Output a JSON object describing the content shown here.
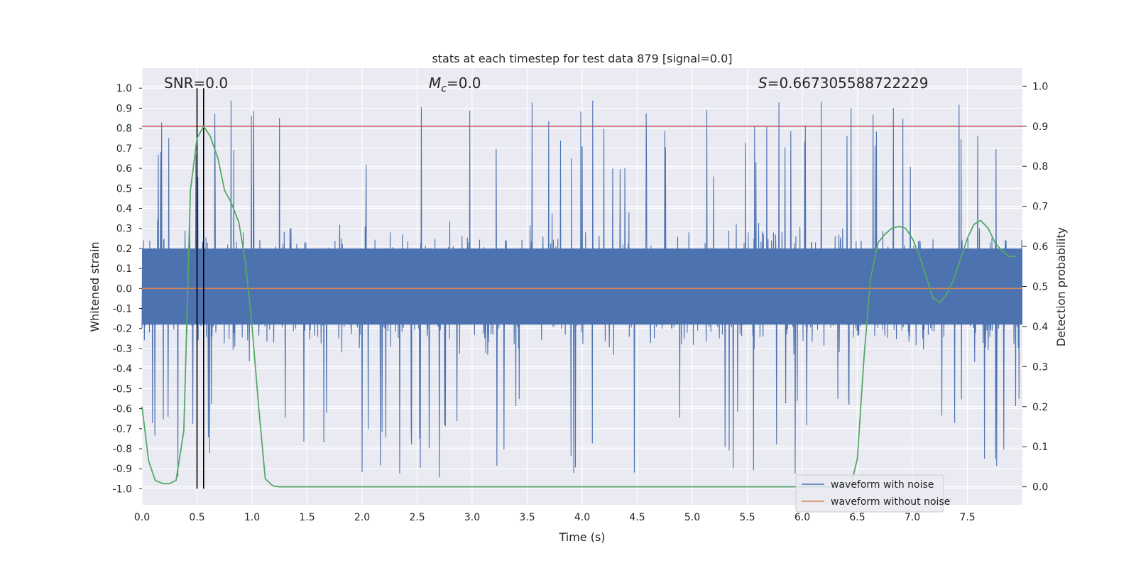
{
  "chart_data": {
    "type": "line",
    "title": "stats at each timestep for test data 879 [signal=0.0]",
    "xlabel": "Time (s)",
    "ylabel_left": "Whitened strain",
    "ylabel_right": "Detection probability",
    "xlim": [
      0.0,
      8.0
    ],
    "ylim_left": [
      -1.08,
      1.1
    ],
    "ylim_right": [
      -0.045,
      1.045
    ],
    "x_ticks": [
      "0.0",
      "0.5",
      "1.0",
      "1.5",
      "2.0",
      "2.5",
      "3.0",
      "3.5",
      "4.0",
      "4.5",
      "5.0",
      "5.5",
      "6.0",
      "6.5",
      "7.0",
      "7.5"
    ],
    "y_left_ticks": [
      "1.0",
      "0.9",
      "0.8",
      "0.7",
      "0.6",
      "0.5",
      "0.4",
      "0.3",
      "0.2",
      "0.1",
      "0.0",
      "-0.1",
      "-0.2",
      "-0.3",
      "-0.4",
      "-0.5",
      "-0.6",
      "-0.7",
      "-0.8",
      "-0.9",
      "-1.0"
    ],
    "y_right_ticks": [
      "1.0",
      "0.9",
      "0.8",
      "0.7",
      "0.6",
      "0.5",
      "0.4",
      "0.3",
      "0.2",
      "0.1",
      "0.0"
    ],
    "annotations": {
      "snr": "SNR=0.0",
      "mc_symbol": "M",
      "mc_sub": "c",
      "mc_value": "=0.0",
      "s_symbol": "S",
      "s_value": "=0.667305588722229"
    },
    "threshold_line": {
      "axis": "right",
      "y": 0.9,
      "color": "#c44e52"
    },
    "vertical_markers": {
      "x": [
        0.5,
        0.56
      ],
      "y_range": [
        -1.0,
        1.0
      ],
      "color": "#000000"
    },
    "series": [
      {
        "name": "waveform with noise",
        "axis": "left",
        "color": "#4c72b0",
        "style": "dense noise, approx. between -0.95 and 1.0"
      },
      {
        "name": "waveform without noise",
        "axis": "left",
        "color": "#dd8452",
        "x": [
          0.0,
          8.0
        ],
        "y": [
          0.0,
          0.0
        ]
      },
      {
        "name": "detection probability",
        "axis": "right",
        "color": "#55a868",
        "x": [
          0.0,
          0.06,
          0.12,
          0.19,
          0.25,
          0.31,
          0.38,
          0.44,
          0.5,
          0.56,
          0.62,
          0.69,
          0.75,
          0.81,
          0.88,
          0.94,
          1.0,
          1.06,
          1.12,
          1.19,
          1.25,
          6.38,
          6.44,
          6.5,
          6.56,
          6.62,
          6.69,
          6.75,
          6.81,
          6.88,
          6.94,
          7.0,
          7.06,
          7.12,
          7.19,
          7.25,
          7.31,
          7.38,
          7.44,
          7.5,
          7.56,
          7.62,
          7.69,
          7.75,
          7.81,
          7.88,
          7.94
        ],
        "y": [
          0.2,
          0.065,
          0.016,
          0.008,
          0.008,
          0.016,
          0.14,
          0.74,
          0.87,
          0.9,
          0.875,
          0.82,
          0.74,
          0.71,
          0.66,
          0.56,
          0.4,
          0.2,
          0.02,
          0.002,
          0.0,
          0.0,
          0.0,
          0.07,
          0.32,
          0.52,
          0.61,
          0.63,
          0.645,
          0.65,
          0.645,
          0.62,
          0.58,
          0.53,
          0.47,
          0.46,
          0.48,
          0.52,
          0.57,
          0.62,
          0.655,
          0.665,
          0.645,
          0.61,
          0.59,
          0.575,
          0.575
        ]
      }
    ],
    "legend": {
      "location": "lower-right",
      "entries": [
        "waveform with noise",
        "waveform without noise"
      ]
    }
  }
}
